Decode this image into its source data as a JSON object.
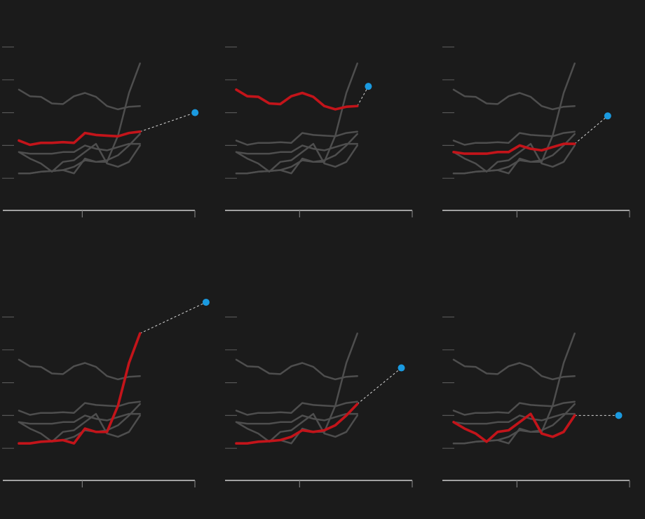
{
  "chart_data": {
    "type": "line",
    "panel_count": 6,
    "colors": {
      "background": "#1b1b1b",
      "other_series": "#4e4e4e",
      "highlight": "#c3141a",
      "projection_dot": "#1a9ae0",
      "projection_line": "#d8d8d8",
      "axis": "#d0d0d0"
    },
    "x": [
      0,
      1,
      2,
      3,
      4,
      5,
      6,
      7,
      8,
      9,
      10,
      11
    ],
    "xlim": [
      0,
      17
    ],
    "ylim": [
      0,
      5
    ],
    "y_ticks": [
      1,
      2,
      3,
      4,
      5
    ],
    "x_ticks": [
      7.3,
      17
    ],
    "grid": false,
    "legend": "none",
    "series": [
      {
        "values": [
          3.7,
          3.5,
          3.48,
          3.28,
          3.26,
          3.5,
          3.6,
          3.48,
          3.2,
          3.1,
          3.18,
          3.2
        ]
      },
      {
        "values": [
          1.8,
          1.6,
          1.45,
          1.2,
          1.5,
          1.55,
          1.8,
          2.05,
          1.45,
          1.35,
          1.5,
          2.0
        ]
      },
      {
        "values": [
          1.8,
          1.75,
          1.75,
          1.75,
          1.8,
          1.8,
          2.0,
          1.9,
          1.85,
          1.95,
          2.05,
          2.05
        ]
      },
      {
        "values": [
          2.15,
          2.02,
          2.08,
          2.08,
          2.1,
          2.08,
          2.38,
          2.32,
          2.3,
          2.28,
          2.38,
          2.42
        ]
      },
      {
        "values": [
          1.15,
          1.15,
          1.2,
          1.22,
          1.25,
          1.35,
          1.55,
          1.5,
          1.55,
          1.7,
          2.0,
          2.35
        ]
      },
      {
        "values": [
          1.15,
          1.15,
          1.2,
          1.22,
          1.25,
          1.15,
          1.6,
          1.5,
          1.5,
          2.3,
          3.6,
          4.5
        ]
      }
    ],
    "panels": [
      {
        "highlight": 3,
        "projection": {
          "x": 16,
          "y": 3.0
        }
      },
      {
        "highlight": 0,
        "projection": {
          "x": 12,
          "y": 3.8
        }
      },
      {
        "highlight": 2,
        "projection": {
          "x": 14,
          "y": 2.9
        }
      },
      {
        "highlight": 5,
        "projection": {
          "x": 17,
          "y": 5.45
        }
      },
      {
        "highlight": 4,
        "projection": {
          "x": 15,
          "y": 3.45
        }
      },
      {
        "highlight": 1,
        "projection": {
          "x": 15,
          "y": 2.0
        }
      }
    ]
  }
}
